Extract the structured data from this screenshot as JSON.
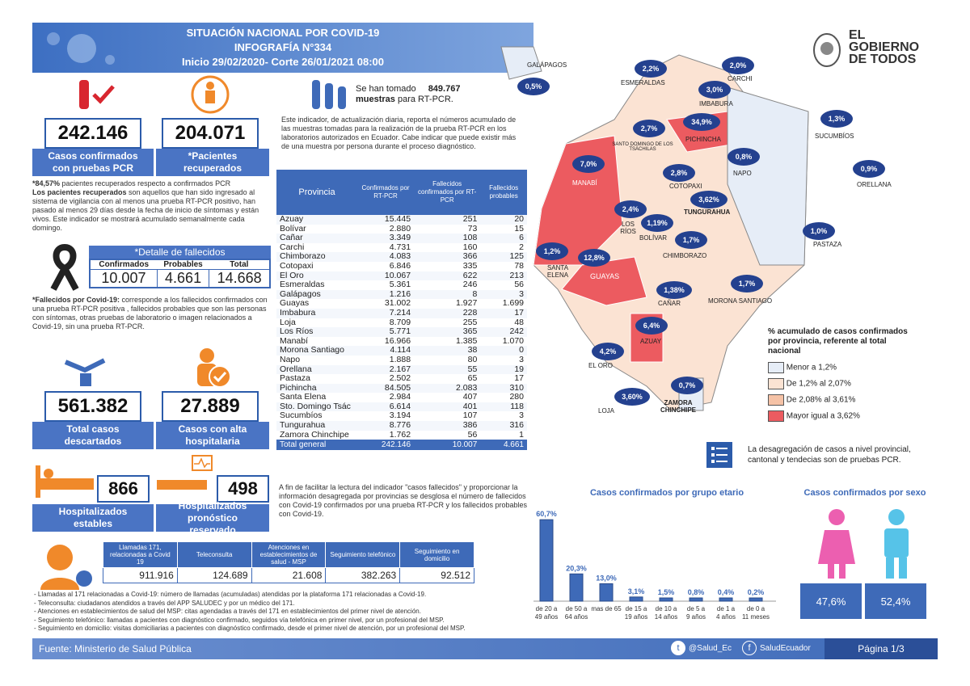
{
  "header": {
    "title": "SITUACIÓN NACIONAL POR  COVID-19",
    "subtitle": "INFOGRAFÍA N°334",
    "period": "Inicio 29/02/2020- Corte 26/01/2021 08:00"
  },
  "logo": {
    "line1": "EL",
    "line2": "GOBIERNO",
    "line3": "DE TODOS"
  },
  "stats": {
    "confirmed": "242.146",
    "confirmed_label": "Casos confirmados con pruebas PCR",
    "recovered": "204.071",
    "recovered_label": "*Pacientes recuperados",
    "recovered_pct": "84,57%",
    "recovered_note_a": " pacientes recuperados respecto a confirmados PCR",
    "recovered_def_bold": "Los pacientes recuperados",
    "recovered_def": " son aquellos que han sido ingresado al sistema de vigilancia con al menos una prueba RT-PCR positivo, han pasado al menos 29 días desde la fecha de inicio de síntomas y están vivos. Este indicador se mostrará acumulado semanalmente cada domingo.",
    "discarded": "561.382",
    "discarded_label": "Total casos descartados",
    "discharged": "27.889",
    "discharged_label": "Casos con alta hospitalaria",
    "stable": "866",
    "stable_label": "Hospitalizados estables",
    "reserved": "498",
    "reserved_label": "Hospitalizados pronóstico reservado"
  },
  "deaths": {
    "title": "*Detalle de fallecidos",
    "h_confirmed": "Confirmados",
    "h_probable": "Probables",
    "h_total": "Total",
    "confirmed": "10.007",
    "probable": "4.661",
    "total": "14.668",
    "note_bold": "*Fallecidos por Covid-19:",
    "note": " corresponde a los fallecidos confirmados con una prueba RT-PCR positiva , fallecidos probables que son las personas con síntomas, otras pruebas de laboratorio o imagen relacionados a Covid-19, sin una prueba RT-PCR."
  },
  "tests": {
    "line1": "Se han tomado",
    "value": "849.767",
    "line2": "muestras",
    "line3": " para RT-PCR.",
    "note": "Este indicador, de actualización diaria, reporta el números acumulado de las muestras tomadas para la realización de la prueba RT-PCR en los laboratorios autorizados en Ecuador. Cabe indicar que puede existir más de una muestra por persona durante el proceso diagnóstico."
  },
  "province_table": {
    "headers": [
      "Provincia",
      "Confirmados por RT-PCR",
      "Fallecidos confirmados por RT-PCR",
      "Fallecidos probables"
    ],
    "rows": [
      [
        "Azuay",
        "15.445",
        "251",
        "20"
      ],
      [
        "Bolívar",
        "2.880",
        "73",
        "15"
      ],
      [
        "Cañar",
        "3.349",
        "108",
        "6"
      ],
      [
        "Carchi",
        "4.731",
        "160",
        "2"
      ],
      [
        "Chimborazo",
        "4.083",
        "366",
        "125"
      ],
      [
        "Cotopaxi",
        "6.846",
        "335",
        "78"
      ],
      [
        "El Oro",
        "10.067",
        "622",
        "213"
      ],
      [
        "Esmeraldas",
        "5.361",
        "246",
        "56"
      ],
      [
        "Galápagos",
        "1.216",
        "8",
        "3"
      ],
      [
        "Guayas",
        "31.002",
        "1.927",
        "1.699"
      ],
      [
        "Imbabura",
        "7.214",
        "228",
        "17"
      ],
      [
        "Loja",
        "8.709",
        "255",
        "48"
      ],
      [
        "Los Ríos",
        "5.771",
        "365",
        "242"
      ],
      [
        "Manabí",
        "16.966",
        "1.385",
        "1.070"
      ],
      [
        "Morona Santiago",
        "4.114",
        "38",
        "0"
      ],
      [
        "Napo",
        "1.888",
        "80",
        "3"
      ],
      [
        "Orellana",
        "2.167",
        "55",
        "19"
      ],
      [
        "Pastaza",
        "2.502",
        "65",
        "17"
      ],
      [
        "Pichincha",
        "84.505",
        "2.083",
        "310"
      ],
      [
        "Santa Elena",
        "2.984",
        "407",
        "280"
      ],
      [
        "Sto. Domingo Tsác",
        "6.614",
        "401",
        "118"
      ],
      [
        "Sucumbíos",
        "3.194",
        "107",
        "3"
      ],
      [
        "Tungurahua",
        "8.776",
        "386",
        "316"
      ],
      [
        "Zamora Chinchipe",
        "1.762",
        "56",
        "1"
      ]
    ],
    "total": [
      "Total general",
      "242.146",
      "10.007",
      "4.661"
    ],
    "footnote": "A fin de facilitar la lectura del indicador \"casos fallecidos\" y proporcionar la información desagregada por provincias se desglosa el número de fallecidos con Covid-19 confirmados por una prueba RT-PCR y los fallecidos probables con Covid-19."
  },
  "map": {
    "provinces": [
      {
        "name": "GALÁPAGOS",
        "pct": "0,5%"
      },
      {
        "name": "ESMERALDAS",
        "pct": "2,2%"
      },
      {
        "name": "CARCHI",
        "pct": "2,0%"
      },
      {
        "name": "IMBABURA",
        "pct": "3,0%"
      },
      {
        "name": "SUCUMBÍOS",
        "pct": "1,3%"
      },
      {
        "name": "SANTO DOMINGO DE LOS TSÁCHILAS",
        "pct": "2,7%"
      },
      {
        "name": "PICHINCHA",
        "pct": "34,9%"
      },
      {
        "name": "NAPO",
        "pct": "0,8%"
      },
      {
        "name": "ORELLANA",
        "pct": "0,9%"
      },
      {
        "name": "MANABÍ",
        "pct": "7,0%"
      },
      {
        "name": "COTOPAXI",
        "pct": "2,8%"
      },
      {
        "name": "TUNGURAHUA",
        "pct": "3,62%"
      },
      {
        "name": "LOS RÍOS",
        "pct": "2,4%"
      },
      {
        "name": "BOLÍVAR",
        "pct": "1,19%"
      },
      {
        "name": "CHIMBORAZO",
        "pct": "1,7%"
      },
      {
        "name": "PASTAZA",
        "pct": "1,0%"
      },
      {
        "name": "SANTA ELENA",
        "pct": "1,2%"
      },
      {
        "name": "GUAYAS",
        "pct": "12,8%"
      },
      {
        "name": "CAÑAR",
        "pct": "1,38%"
      },
      {
        "name": "MORONA SANTIAGO",
        "pct": "1,7%"
      },
      {
        "name": "AZUAY",
        "pct": "6,4%"
      },
      {
        "name": "EL ORO",
        "pct": "4,2%"
      },
      {
        "name": "ZAMORA CHINCHIPE",
        "pct": "0,7%"
      },
      {
        "name": "LOJA",
        "pct": "3,60%"
      }
    ],
    "legend_title": "% acumulado de casos confirmados por provincia, referente al total nacional",
    "legend": [
      {
        "label": "Menor a 1,2%",
        "color": "#e6edf7"
      },
      {
        "label": "De 1,2% al 2,07%",
        "color": "#fbe3d3"
      },
      {
        "label": "De 2,08% al 3,61%",
        "color": "#f5c2a6"
      },
      {
        "label": "Mayor igual a 3,62%",
        "color": "#ec5b60"
      }
    ],
    "note": "La desagregación de casos a nivel provincial, cantonal y tendecias son  de pruebas PCR."
  },
  "chart_data": [
    {
      "type": "bar",
      "title": "Casos confirmados por grupo etario",
      "categories": [
        "de 20 a 49 años",
        "de 50 a 64 años",
        "mas de 65",
        "de 15 a 19 años",
        "de 10 a 14 años",
        "de 5 a 9 años",
        "de 1 a 4 años",
        "de 0 a 11 meses"
      ],
      "values": [
        60.7,
        20.3,
        13.0,
        3.1,
        1.5,
        0.8,
        0.4,
        0.2
      ],
      "labels": [
        "60,7%",
        "20,3%",
        "13,0%",
        "3,1%",
        "1,5%",
        "0,8%",
        "0,4%",
        "0,2%"
      ],
      "ylim": [
        0,
        65
      ]
    },
    {
      "type": "bar",
      "title": "Casos confirmados por sexo",
      "categories": [
        "Mujeres",
        "Hombres"
      ],
      "values": [
        47.6,
        52.4
      ],
      "labels": [
        "47,6%",
        "52,4%"
      ]
    }
  ],
  "calls_table": {
    "headers": [
      "Llamadas 171, relacionadas a Covid 19",
      "Teleconsulta",
      "Atenciones en establecimientos de salud - MSP",
      "Seguimiento telefónico",
      "Seguimiento en domicilio"
    ],
    "values": [
      "911.916",
      "124.689",
      "21.608",
      "382.263",
      "92.512"
    ],
    "notes": [
      "- Llamadas al 171 relacionadas a Covid-19: número de llamadas (acumuladas) atendidas por la plataforma 171 relacionadas a Covid-19.",
      "- Teleconsulta: ciudadanos atendidos a través del APP SALUDEC y por un médico del 171.",
      "- Atenciones en establecimientos de salud del MSP:  citas agendadas a través del 171 en establecimientos del primer nivel de atención.",
      "- Seguimiento telefónico: llamadas a pacientes con diagnóstico confirmado, seguidos vía telefónica en primer nivel, por un profesional del MSP.",
      "- Seguimiento en domicilio: visitas domiciliarias a pacientes con diagnóstico confirmado, desde el primer nivel de atención, por un profesional del MSP."
    ]
  },
  "footer": {
    "source_label": "Fuente:",
    "source": " Ministerio de Salud Pública",
    "twitter": "@Salud_Ec",
    "facebook": "SaludEcuador",
    "page": "Página 1/3"
  }
}
